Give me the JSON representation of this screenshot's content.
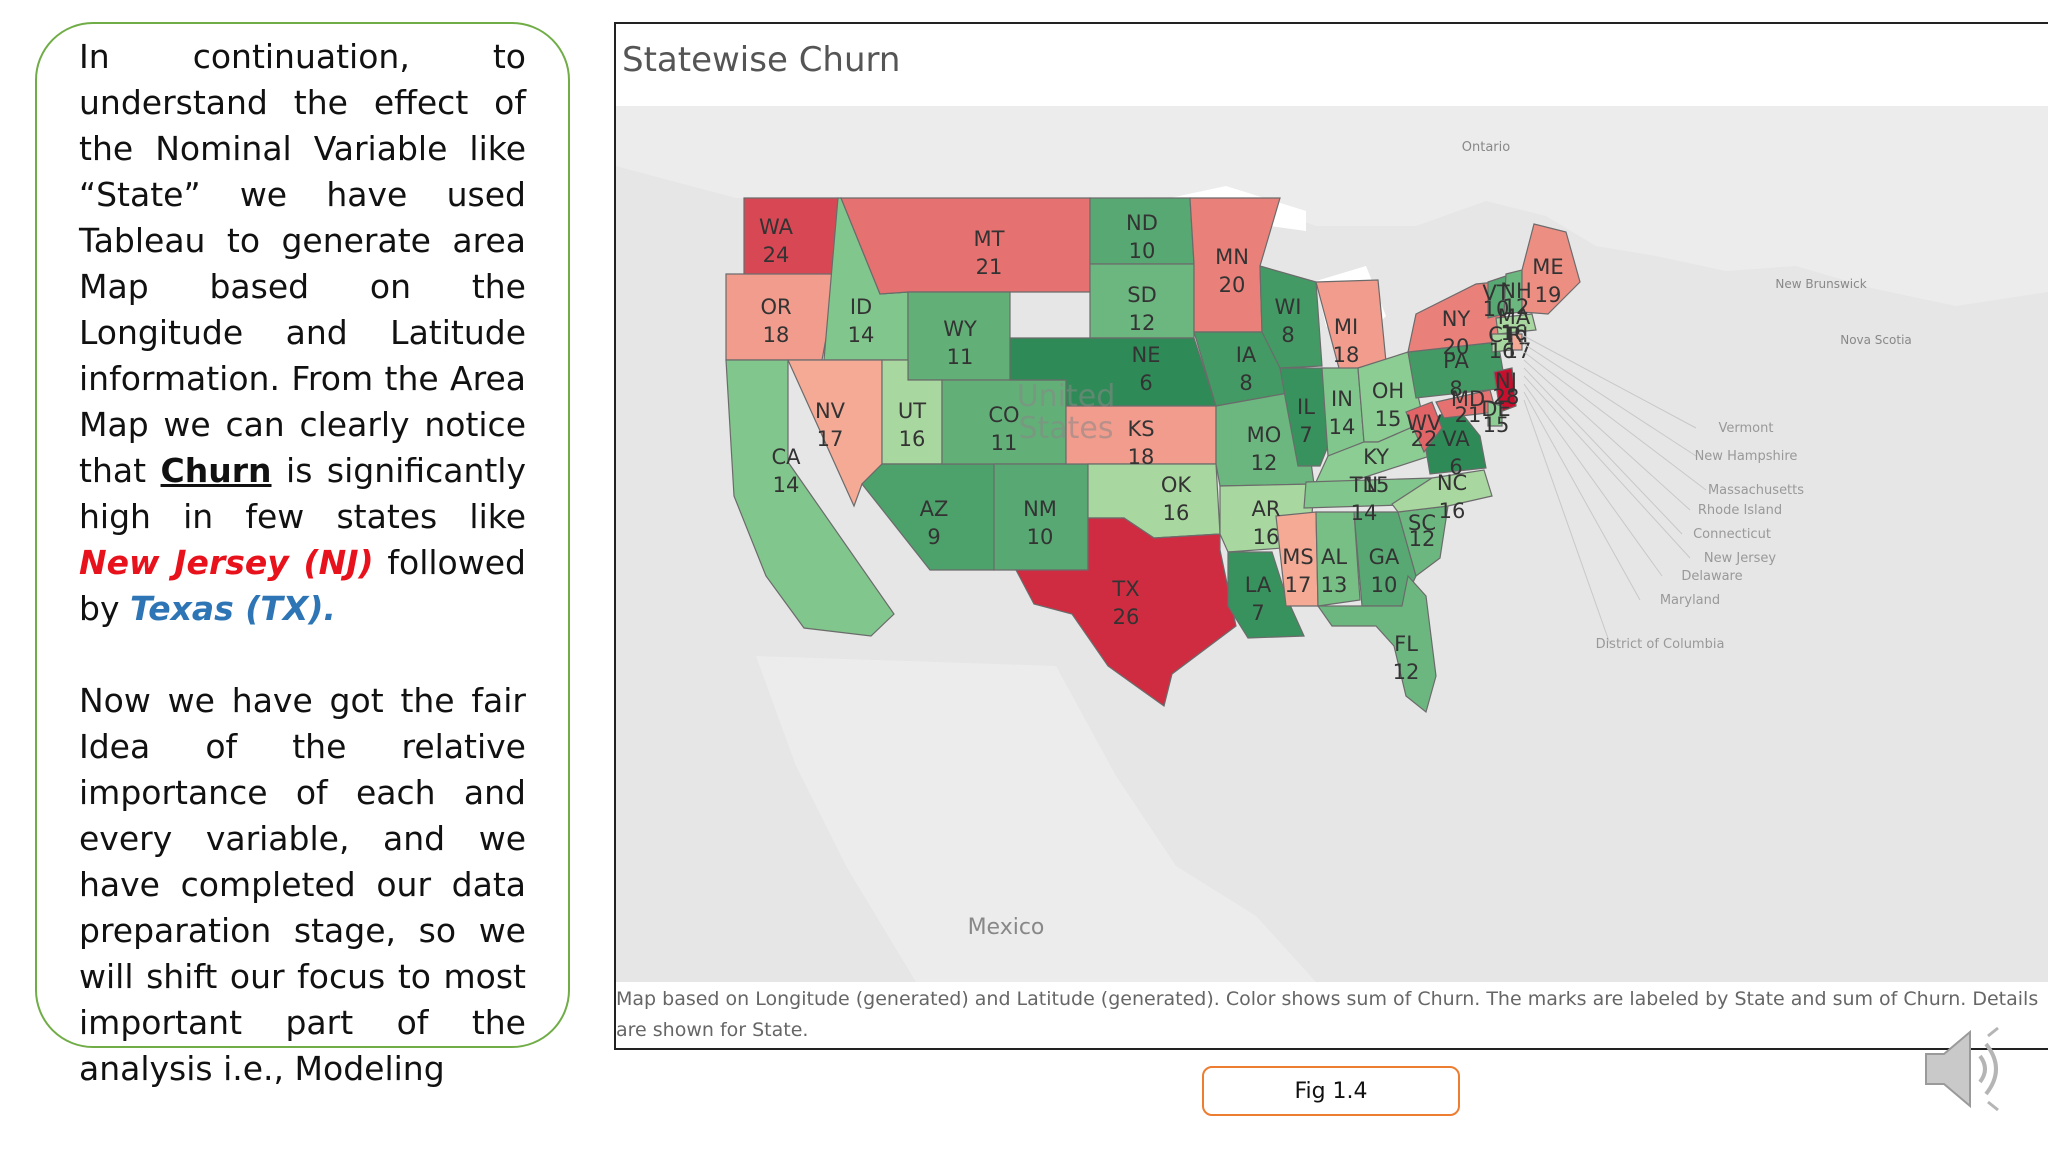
{
  "slide": {
    "para1": {
      "pre": "In continuation, to understand the effect of the Nominal Variable like “State” we have used Tableau to generate area Map based on the Longitude and Latitude information. From the Area Map we can clearly notice that ",
      "churn": "Churn",
      "mid": " is significantly high in few states like ",
      "nj": "New Jersey (NJ)",
      "post": " followed by ",
      "tx": "Texas (TX)."
    },
    "para2": "Now we have got the fair Idea of the relative importance of each and every variable, and we have completed our data preparation stage, so we will shift our focus to most important part of the analysis i.e., Modeling",
    "figure_label": "Fig 1.4"
  },
  "map": {
    "title": "Statewise Churn",
    "caption": "Map based on Longitude (generated) and Latitude (generated). Color shows sum of Churn. The marks are labeled by State and sum of Churn. Details are shown for State.",
    "geo_labels": {
      "ontario": "Ontario",
      "mexico": "Mexico",
      "united": "United",
      "states": "States",
      "new_brunswick": "New Brunswick",
      "nova_scotia": "Nova Scotia"
    },
    "callouts": [
      "Vermont",
      "New Hampshire",
      "Massachusetts",
      "Rhode Island",
      "Connecticut",
      "New Jersey",
      "Delaware",
      "Maryland",
      "District of Columbia"
    ],
    "colors": {
      "low": "#2e8b57",
      "high": "#c8102e"
    },
    "states": [
      {
        "code": "WA",
        "value": 24
      },
      {
        "code": "OR",
        "value": 18
      },
      {
        "code": "CA",
        "value": 14
      },
      {
        "code": "ID",
        "value": 14
      },
      {
        "code": "NV",
        "value": 17
      },
      {
        "code": "MT",
        "value": 21
      },
      {
        "code": "WY",
        "value": 11
      },
      {
        "code": "UT",
        "value": 16
      },
      {
        "code": "AZ",
        "value": 9
      },
      {
        "code": "CO",
        "value": 11
      },
      {
        "code": "NM",
        "value": 10
      },
      {
        "code": "ND",
        "value": 10
      },
      {
        "code": "SD",
        "value": 12
      },
      {
        "code": "NE",
        "value": 6
      },
      {
        "code": "KS",
        "value": 18
      },
      {
        "code": "OK",
        "value": 16
      },
      {
        "code": "TX",
        "value": 26
      },
      {
        "code": "MN",
        "value": 20
      },
      {
        "code": "IA",
        "value": 8
      },
      {
        "code": "MO",
        "value": 12
      },
      {
        "code": "AR",
        "value": 16
      },
      {
        "code": "LA",
        "value": 7
      },
      {
        "code": "WI",
        "value": 8
      },
      {
        "code": "IL",
        "value": 7
      },
      {
        "code": "MI",
        "value": 18
      },
      {
        "code": "IN",
        "value": 14
      },
      {
        "code": "OH",
        "value": 15
      },
      {
        "code": "KY",
        "value": 15
      },
      {
        "code": "TN",
        "value": 14
      },
      {
        "code": "MS",
        "value": 17
      },
      {
        "code": "AL",
        "value": 13
      },
      {
        "code": "GA",
        "value": 10
      },
      {
        "code": "FL",
        "value": 12
      },
      {
        "code": "SC",
        "value": 12
      },
      {
        "code": "NC",
        "value": 16
      },
      {
        "code": "VA",
        "value": 6
      },
      {
        "code": "WV",
        "value": 22
      },
      {
        "code": "PA",
        "value": 8
      },
      {
        "code": "NY",
        "value": 20
      },
      {
        "code": "NJ",
        "value": 28
      },
      {
        "code": "MD",
        "value": 21
      },
      {
        "code": "DE",
        "value": 15
      },
      {
        "code": "VT",
        "value": 10
      },
      {
        "code": "NH",
        "value": 12
      },
      {
        "code": "ME",
        "value": 19
      },
      {
        "code": "MA",
        "value": 16
      },
      {
        "code": "CT",
        "value": 16
      },
      {
        "code": "RI",
        "value": 17
      }
    ]
  }
}
